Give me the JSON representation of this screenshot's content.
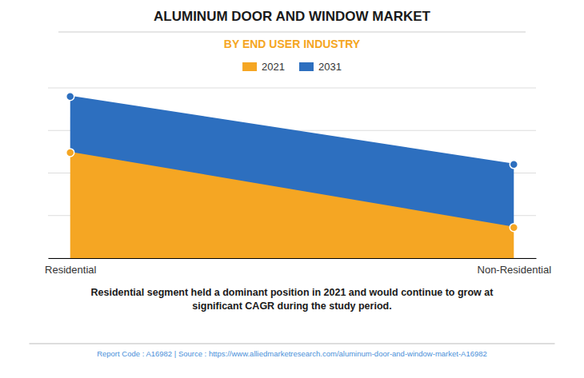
{
  "chart_data": {
    "type": "area",
    "title": "ALUMINUM DOOR AND WINDOW MARKET",
    "subtitle": "BY END USER INDUSTRY",
    "categories": [
      "Residential",
      "Non-Residential"
    ],
    "series": [
      {
        "name": "2021",
        "color": "#F5A623",
        "values": [
          62,
          18
        ]
      },
      {
        "name": "2031",
        "color": "#2D6FBF",
        "values": [
          95,
          55
        ]
      }
    ],
    "ylim": [
      0,
      100
    ],
    "yticks": [
      0,
      25,
      50,
      75,
      100
    ],
    "grid": true,
    "tick_labels": "x",
    "legend": "top",
    "marker": "circle",
    "annotations": [
      "Residential segment held a dominant position in 2021 and would continue to grow at\nsignificant CAGR during the study period.",
      "Report Code : A16982  |  Source : https://www.alliedmarketresearch.com/aluminum-door-and-window-market-A16982"
    ]
  }
}
